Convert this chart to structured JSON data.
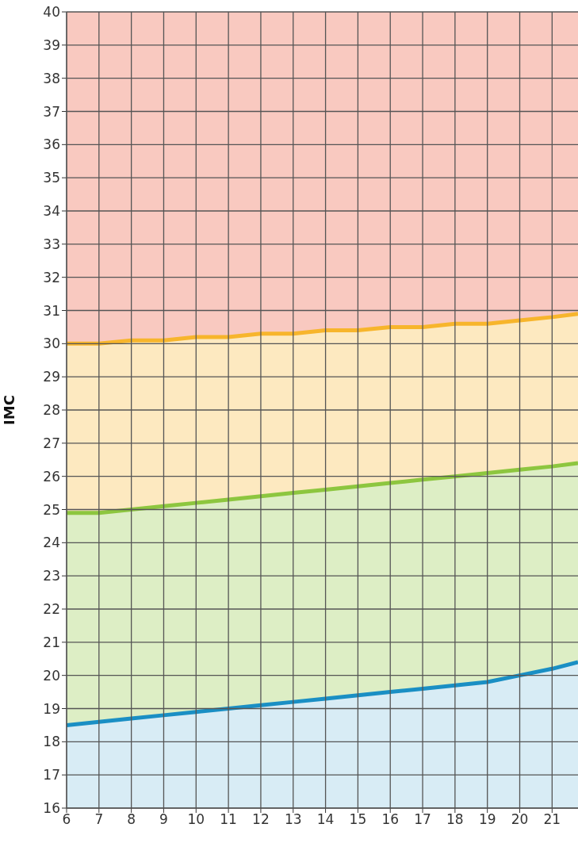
{
  "chart_data": {
    "type": "area",
    "ylabel": "IMC",
    "x": [
      6,
      7,
      8,
      9,
      10,
      11,
      12,
      13,
      14,
      15,
      16,
      17,
      18,
      19,
      20,
      21,
      21.8
    ],
    "series": [
      {
        "color": "#f7b52c",
        "values": [
          30.0,
          30.0,
          30.1,
          30.1,
          30.2,
          30.2,
          30.3,
          30.3,
          30.4,
          30.4,
          30.5,
          30.5,
          30.6,
          30.6,
          30.7,
          30.8,
          30.9
        ]
      },
      {
        "color": "#8dc63f",
        "values": [
          24.9,
          24.9,
          25.0,
          25.1,
          25.2,
          25.3,
          25.4,
          25.5,
          25.6,
          25.7,
          25.8,
          25.9,
          26.0,
          26.1,
          26.2,
          26.3,
          26.4
        ]
      },
      {
        "color": "#1a8fc4",
        "values": [
          18.5,
          18.6,
          18.7,
          18.8,
          18.9,
          19.0,
          19.1,
          19.2,
          19.3,
          19.4,
          19.5,
          19.6,
          19.7,
          19.8,
          20.0,
          20.2,
          20.4
        ]
      }
    ],
    "bands": [
      {
        "axis": "y",
        "from": 30,
        "to": 40,
        "color": "#f9c9c0"
      }
    ],
    "xlim": [
      6,
      21.8
    ],
    "xticks": [
      6,
      7,
      8,
      9,
      10,
      11,
      12,
      13,
      14,
      15,
      16,
      17,
      18,
      19,
      20,
      21
    ],
    "ylim": [
      16,
      40
    ],
    "yticks": [
      16,
      17,
      18,
      19,
      20,
      21,
      22,
      23,
      24,
      25,
      26,
      27,
      28,
      29,
      30,
      31,
      32,
      33,
      34,
      35,
      36,
      37,
      38,
      39,
      40
    ],
    "grid": true,
    "line_style": "solid",
    "marker": "none"
  }
}
